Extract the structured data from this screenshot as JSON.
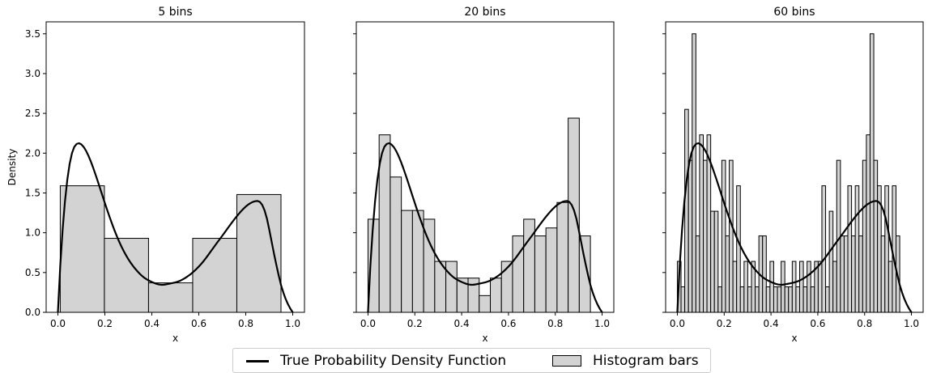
{
  "chart_data": {
    "type": "bar",
    "ylabel": "Density",
    "xlabel": "x",
    "ylim": [
      0,
      3.65
    ],
    "xlim": [
      -0.05,
      1.05
    ],
    "x_ticks": [
      "0.0",
      "0.2",
      "0.4",
      "0.6",
      "0.8",
      "1.0"
    ],
    "y_ticks": [
      "0.0",
      "0.5",
      "1.0",
      "1.5",
      "2.0",
      "2.5",
      "3.0",
      "3.5"
    ],
    "legend": {
      "placement": "bottom-center",
      "pdf_label": "True Probability Density Function",
      "hist_label": "Histogram bars"
    },
    "colors": {
      "bar_fill": "#d3d3d3",
      "bar_edge": "#000000",
      "pdf_line": "#000000"
    },
    "panels": [
      {
        "title": "5 bins",
        "bin_start": 0.01,
        "bin_end": 0.95,
        "values": [
          1.59,
          0.93,
          0.37,
          0.93,
          1.48
        ]
      },
      {
        "title": "20 bins",
        "bin_start": 0.0,
        "bin_end": 0.95,
        "values": [
          1.17,
          2.23,
          1.7,
          1.28,
          1.28,
          1.17,
          0.64,
          0.64,
          0.43,
          0.43,
          0.21,
          0.43,
          0.64,
          0.96,
          1.17,
          0.96,
          1.06,
          1.38,
          2.44,
          0.96
        ]
      },
      {
        "title": "60 bins",
        "bin_start": 0.0,
        "bin_end": 0.95,
        "values": [
          0.64,
          0.32,
          2.55,
          1.91,
          3.5,
          0.96,
          2.23,
          1.91,
          2.23,
          1.27,
          1.27,
          0.32,
          1.91,
          0.96,
          1.91,
          0.64,
          1.59,
          0.32,
          0.64,
          0.32,
          0.64,
          0.32,
          0.96,
          0.96,
          0.32,
          0.64,
          0.32,
          0.32,
          0.64,
          0.32,
          0.32,
          0.64,
          0.32,
          0.64,
          0.32,
          0.64,
          0.32,
          0.64,
          0.64,
          1.59,
          0.32,
          1.27,
          0.64,
          1.91,
          0.96,
          0.96,
          1.59,
          0.96,
          1.59,
          0.96,
          1.91,
          2.23,
          3.5,
          1.91,
          1.59,
          0.96,
          1.59,
          0.64,
          1.59,
          0.96
        ]
      }
    ],
    "pdf_curve": {
      "x": [
        0.0,
        0.01,
        0.02,
        0.03,
        0.04,
        0.05,
        0.06,
        0.07,
        0.08,
        0.09,
        0.1,
        0.11,
        0.12,
        0.13,
        0.14,
        0.15,
        0.16,
        0.17,
        0.18,
        0.19,
        0.2,
        0.21,
        0.22,
        0.23,
        0.24,
        0.25,
        0.26,
        0.27,
        0.28,
        0.29,
        0.3,
        0.31,
        0.32,
        0.33,
        0.34,
        0.35,
        0.36,
        0.37,
        0.38,
        0.39,
        0.4,
        0.41,
        0.42,
        0.43,
        0.44,
        0.45,
        0.46,
        0.47,
        0.48,
        0.49,
        0.5,
        0.51,
        0.52,
        0.53,
        0.54,
        0.55,
        0.56,
        0.57,
        0.58,
        0.59,
        0.6,
        0.61,
        0.62,
        0.63,
        0.64,
        0.65,
        0.66,
        0.67,
        0.68,
        0.69,
        0.7,
        0.71,
        0.72,
        0.73,
        0.74,
        0.75,
        0.76,
        0.77,
        0.78,
        0.79,
        0.8,
        0.81,
        0.82,
        0.83,
        0.84,
        0.85,
        0.86,
        0.87,
        0.88,
        0.89,
        0.9,
        0.91,
        0.92,
        0.93,
        0.94,
        0.95,
        0.96,
        0.97,
        0.98,
        0.99,
        1.0
      ],
      "y": [
        0.0,
        0.582,
        1.034,
        1.392,
        1.665,
        1.865,
        2.0,
        2.08,
        2.116,
        2.125,
        2.11,
        2.077,
        2.029,
        1.968,
        1.897,
        1.818,
        1.733,
        1.645,
        1.554,
        1.463,
        1.373,
        1.285,
        1.199,
        1.117,
        1.038,
        0.964,
        0.894,
        0.83,
        0.771,
        0.717,
        0.667,
        0.622,
        0.582,
        0.545,
        0.511,
        0.48,
        0.453,
        0.43,
        0.411,
        0.395,
        0.381,
        0.369,
        0.358,
        0.35,
        0.346,
        0.347,
        0.351,
        0.357,
        0.363,
        0.369,
        0.376,
        0.385,
        0.396,
        0.411,
        0.428,
        0.447,
        0.468,
        0.491,
        0.517,
        0.545,
        0.575,
        0.607,
        0.642,
        0.68,
        0.72,
        0.761,
        0.802,
        0.843,
        0.883,
        0.923,
        0.962,
        1.002,
        1.043,
        1.084,
        1.124,
        1.163,
        1.2,
        1.236,
        1.27,
        1.301,
        1.329,
        1.353,
        1.372,
        1.387,
        1.396,
        1.399,
        1.387,
        1.35,
        1.282,
        1.179,
        1.04,
        0.89,
        0.74,
        0.599,
        0.466,
        0.344,
        0.248,
        0.167,
        0.1,
        0.045,
        0.0
      ]
    }
  }
}
